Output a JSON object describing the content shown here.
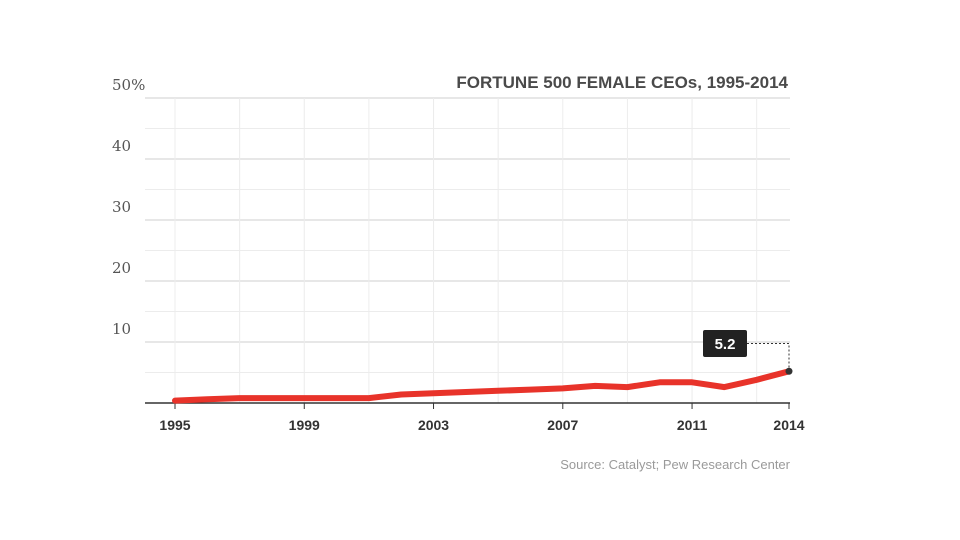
{
  "chart_data": {
    "type": "line",
    "title": "FORTUNE 500 FEMALE CEOs, 1995-2014",
    "xlabel": "",
    "ylabel": "",
    "ylim": [
      0,
      50
    ],
    "xlim": [
      1995,
      2014
    ],
    "y_ticks": [
      {
        "value": 10,
        "label": "10"
      },
      {
        "value": 20,
        "label": "20"
      },
      {
        "value": 30,
        "label": "30"
      },
      {
        "value": 40,
        "label": "40"
      },
      {
        "value": 50,
        "label": "50%"
      }
    ],
    "x_ticks": [
      {
        "value": 1995,
        "label": "1995"
      },
      {
        "value": 1999,
        "label": "1999"
      },
      {
        "value": 2003,
        "label": "2003"
      },
      {
        "value": 2007,
        "label": "2007"
      },
      {
        "value": 2011,
        "label": "2011"
      },
      {
        "value": 2014,
        "label": "2014"
      }
    ],
    "grid": true,
    "color": "#e8332a",
    "series": [
      {
        "x": [
          1995,
          1996,
          1997,
          1998,
          1999,
          2000,
          2001,
          2002,
          2003,
          2004,
          2005,
          2006,
          2007,
          2008,
          2009,
          2010,
          2011,
          2012,
          2013,
          2014
        ],
        "values": [
          0.4,
          0.6,
          0.8,
          0.8,
          0.8,
          0.8,
          0.8,
          1.4,
          1.6,
          1.8,
          2.0,
          2.2,
          2.4,
          2.8,
          2.6,
          3.4,
          3.4,
          2.6,
          3.8,
          5.2
        ]
      }
    ],
    "callout": {
      "label": "5.2",
      "x": 2014,
      "value": 5.2
    },
    "source": "Source: Catalyst; Pew Research Center"
  }
}
